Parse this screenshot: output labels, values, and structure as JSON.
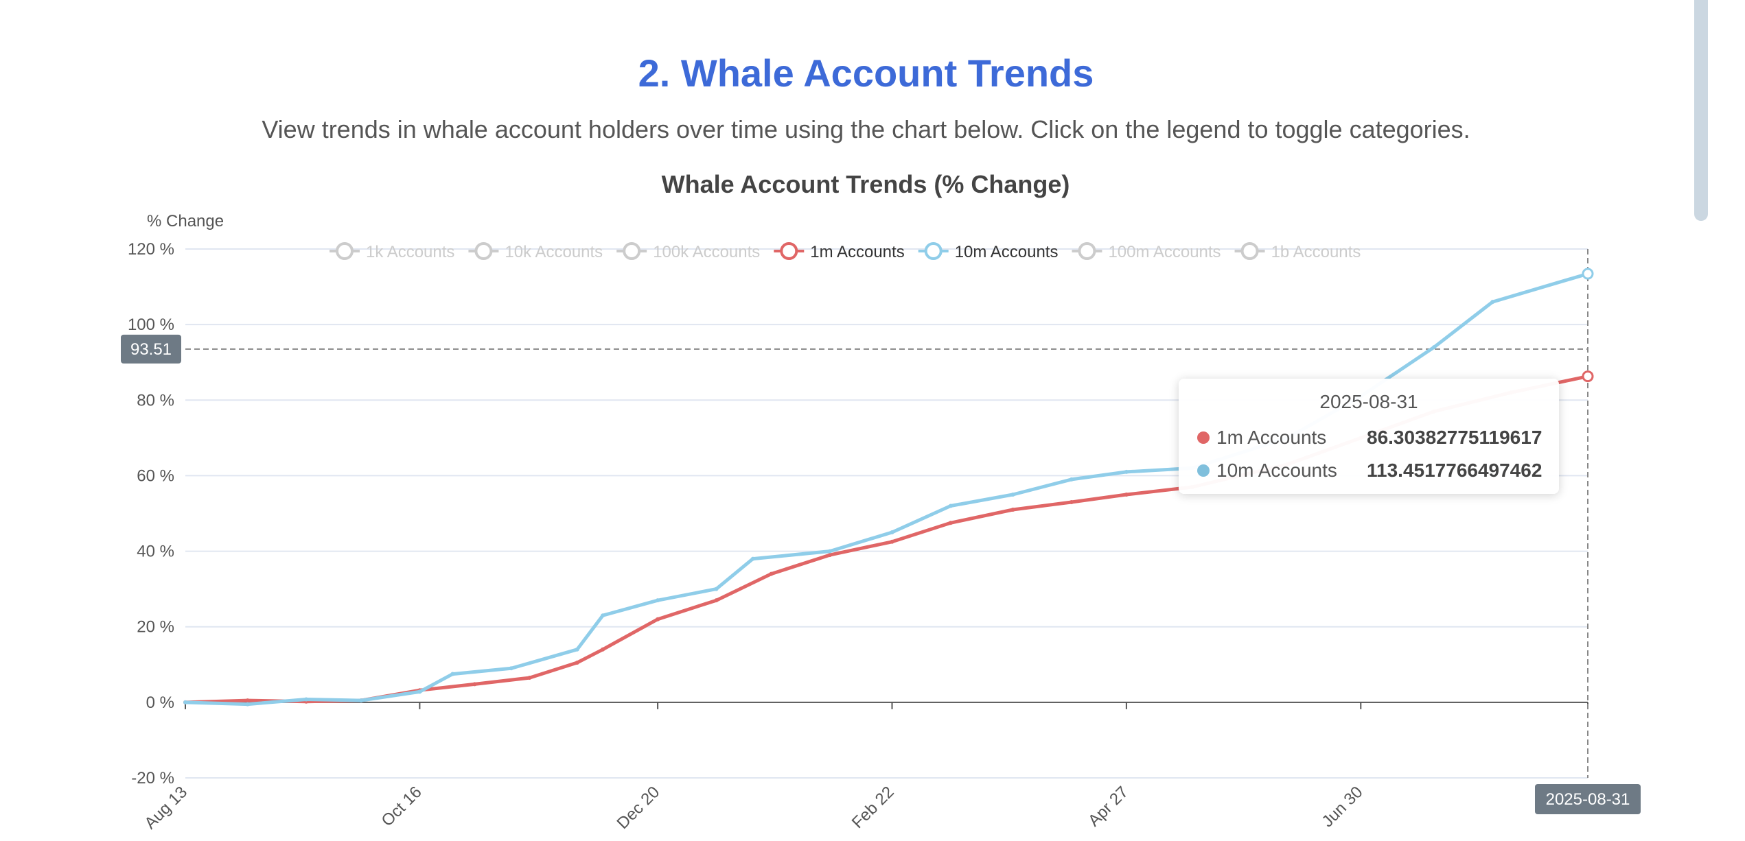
{
  "page": {
    "title": "2. Whale Account Trends",
    "subtitle": "View trends in whale account holders over time using the chart below. Click on the legend to toggle categories."
  },
  "chart_data": {
    "type": "line",
    "title": "Whale Account Trends (% Change)",
    "ylabel": "% Change",
    "xlabel": "",
    "ylim": [
      -20,
      120
    ],
    "y_ticks": [
      "-20 %",
      "0 %",
      "20 %",
      "40 %",
      "60 %",
      "80 %",
      "100 %",
      "120 %"
    ],
    "x_tick_labels": [
      "Aug 13",
      "Oct 16",
      "Dec 20",
      "Feb 22",
      "Apr 27",
      "Jun 30"
    ],
    "x_range": [
      "2024-08-13",
      "2025-08-31"
    ],
    "grid": true,
    "legend_position": "top",
    "legend": [
      {
        "name": "1k Accounts",
        "active": false
      },
      {
        "name": "10k Accounts",
        "active": false
      },
      {
        "name": "100k Accounts",
        "active": false
      },
      {
        "name": "1m Accounts",
        "active": true,
        "color": "#e06666"
      },
      {
        "name": "10m Accounts",
        "active": true,
        "color": "#8fcde9"
      },
      {
        "name": "100m Accounts",
        "active": false
      },
      {
        "name": "1b Accounts",
        "active": false
      }
    ],
    "series": [
      {
        "name": "1m Accounts",
        "color": "#e06666",
        "points": [
          [
            "2024-08-13",
            0
          ],
          [
            "2024-08-30",
            0.5
          ],
          [
            "2024-09-15",
            0.2
          ],
          [
            "2024-09-30",
            0.5
          ],
          [
            "2024-10-16",
            3.2
          ],
          [
            "2024-10-31",
            4.8
          ],
          [
            "2024-11-15",
            6.5
          ],
          [
            "2024-11-28",
            10.5
          ],
          [
            "2024-12-05",
            14
          ],
          [
            "2024-12-20",
            22
          ],
          [
            "2025-01-05",
            27
          ],
          [
            "2025-01-20",
            34
          ],
          [
            "2025-02-05",
            39
          ],
          [
            "2025-02-22",
            42.5
          ],
          [
            "2025-03-10",
            47.5
          ],
          [
            "2025-03-27",
            51
          ],
          [
            "2025-04-12",
            53
          ],
          [
            "2025-04-27",
            55
          ],
          [
            "2025-05-15",
            57
          ],
          [
            "2025-06-10",
            63
          ],
          [
            "2025-06-30",
            70
          ],
          [
            "2025-07-20",
            77
          ],
          [
            "2025-08-10",
            82
          ],
          [
            "2025-08-31",
            86.30382775119617
          ]
        ]
      },
      {
        "name": "10m Accounts",
        "color": "#8fcde9",
        "points": [
          [
            "2024-08-13",
            0
          ],
          [
            "2024-08-30",
            -0.5
          ],
          [
            "2024-09-15",
            0.8
          ],
          [
            "2024-09-30",
            0.5
          ],
          [
            "2024-10-16",
            2.8
          ],
          [
            "2024-10-25",
            7.5
          ],
          [
            "2024-11-10",
            9
          ],
          [
            "2024-11-28",
            14
          ],
          [
            "2024-12-05",
            23
          ],
          [
            "2024-12-20",
            27
          ],
          [
            "2025-01-05",
            30
          ],
          [
            "2025-01-15",
            38
          ],
          [
            "2025-02-05",
            40
          ],
          [
            "2025-02-22",
            45
          ],
          [
            "2025-03-10",
            52
          ],
          [
            "2025-03-27",
            55
          ],
          [
            "2025-04-12",
            59
          ],
          [
            "2025-04-27",
            61
          ],
          [
            "2025-05-15",
            62
          ],
          [
            "2025-06-10",
            70
          ],
          [
            "2025-06-30",
            81
          ],
          [
            "2025-07-20",
            94
          ],
          [
            "2025-08-05",
            106
          ],
          [
            "2025-08-31",
            113.4517766497462
          ]
        ]
      }
    ],
    "crosshair": {
      "y_label": "93.51",
      "x_label": "2025-08-31"
    },
    "tooltip": {
      "date": "2025-08-31",
      "items": [
        {
          "name": "1m Accounts",
          "value": "86.30382775119617",
          "color": "#e06666"
        },
        {
          "name": "10m Accounts",
          "value": "113.4517766497462",
          "color": "#8fcde9"
        }
      ]
    }
  }
}
